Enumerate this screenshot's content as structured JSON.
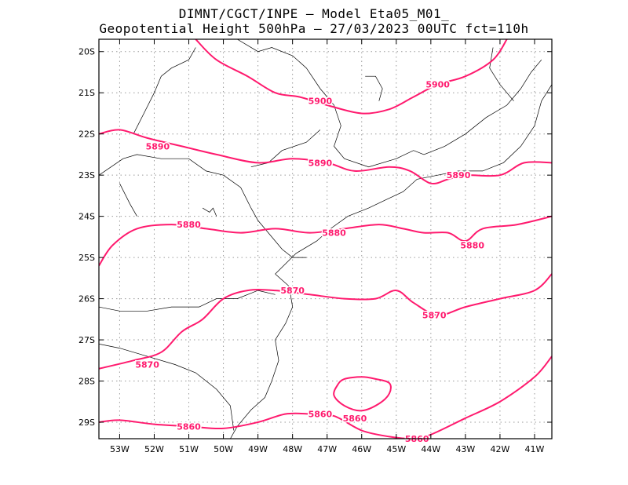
{
  "header": {
    "line1": "DIMNT/CGCT/INPE –  Model Eta05_M01_",
    "line2": "Geopotential Height 500hPa –  27/03/2023 00UTC fct=110h"
  },
  "map": {
    "lon_range": [
      -53.6,
      -40.5
    ],
    "lat_range": [
      -29.4,
      -19.7
    ],
    "lon_ticks": [
      {
        "value": -53,
        "label": "53W"
      },
      {
        "value": -52,
        "label": "52W"
      },
      {
        "value": -51,
        "label": "51W"
      },
      {
        "value": -50,
        "label": "50W"
      },
      {
        "value": -49,
        "label": "49W"
      },
      {
        "value": -48,
        "label": "48W"
      },
      {
        "value": -47,
        "label": "47W"
      },
      {
        "value": -46,
        "label": "46W"
      },
      {
        "value": -45,
        "label": "45W"
      },
      {
        "value": -44,
        "label": "44W"
      },
      {
        "value": -43,
        "label": "43W"
      },
      {
        "value": -42,
        "label": "42W"
      },
      {
        "value": -41,
        "label": "41W"
      }
    ],
    "lat_ticks": [
      {
        "value": -20,
        "label": "20S"
      },
      {
        "value": -21,
        "label": "21S"
      },
      {
        "value": -22,
        "label": "22S"
      },
      {
        "value": -23,
        "label": "23S"
      },
      {
        "value": -24,
        "label": "24S"
      },
      {
        "value": -25,
        "label": "25S"
      },
      {
        "value": -26,
        "label": "26S"
      },
      {
        "value": -27,
        "label": "27S"
      },
      {
        "value": -28,
        "label": "28S"
      },
      {
        "value": -29,
        "label": "29S"
      }
    ],
    "grid": true,
    "contour_color": "#ff1a6e",
    "contours": [
      {
        "level": "5900",
        "label_at": [
          [
            -47.2,
            -21.2
          ],
          [
            -43.8,
            -20.8
          ]
        ],
        "points": [
          [
            -50.8,
            -19.7
          ],
          [
            -50.2,
            -20.2
          ],
          [
            -49.3,
            -20.6
          ],
          [
            -48.5,
            -21.0
          ],
          [
            -47.8,
            -21.1
          ],
          [
            -47.0,
            -21.3
          ],
          [
            -46.0,
            -21.5
          ],
          [
            -45.2,
            -21.4
          ],
          [
            -44.5,
            -21.1
          ],
          [
            -43.8,
            -20.8
          ],
          [
            -43.0,
            -20.6
          ],
          [
            -42.2,
            -20.2
          ],
          [
            -41.8,
            -19.7
          ]
        ]
      },
      {
        "level": "5890",
        "label_at": [
          [
            -51.9,
            -22.3
          ],
          [
            -47.2,
            -22.7
          ],
          [
            -43.2,
            -23.0
          ]
        ],
        "points": [
          [
            -53.6,
            -22.0
          ],
          [
            -53.0,
            -21.9
          ],
          [
            -52.2,
            -22.1
          ],
          [
            -51.2,
            -22.3
          ],
          [
            -50.2,
            -22.5
          ],
          [
            -49.0,
            -22.7
          ],
          [
            -48.0,
            -22.6
          ],
          [
            -47.0,
            -22.7
          ],
          [
            -46.2,
            -22.9
          ],
          [
            -45.2,
            -22.8
          ],
          [
            -44.6,
            -22.9
          ],
          [
            -44.0,
            -23.2
          ],
          [
            -43.5,
            -23.1
          ],
          [
            -43.0,
            -23.0
          ],
          [
            -42.0,
            -23.0
          ],
          [
            -41.3,
            -22.7
          ],
          [
            -40.5,
            -22.7
          ]
        ]
      },
      {
        "level": "5880",
        "label_at": [
          [
            -51.0,
            -24.2
          ],
          [
            -46.8,
            -24.4
          ],
          [
            -42.8,
            -24.7
          ]
        ],
        "points": [
          [
            -53.6,
            -25.2
          ],
          [
            -53.2,
            -24.7
          ],
          [
            -52.5,
            -24.3
          ],
          [
            -51.5,
            -24.2
          ],
          [
            -50.5,
            -24.3
          ],
          [
            -49.5,
            -24.4
          ],
          [
            -48.5,
            -24.3
          ],
          [
            -47.5,
            -24.4
          ],
          [
            -46.5,
            -24.3
          ],
          [
            -45.5,
            -24.2
          ],
          [
            -44.8,
            -24.3
          ],
          [
            -44.2,
            -24.4
          ],
          [
            -43.5,
            -24.4
          ],
          [
            -43.0,
            -24.6
          ],
          [
            -42.5,
            -24.3
          ],
          [
            -41.5,
            -24.2
          ],
          [
            -40.5,
            -24.0
          ]
        ]
      },
      {
        "level": "5870",
        "label_at": [
          [
            -48.0,
            -25.8
          ],
          [
            -43.9,
            -26.4
          ],
          [
            -52.2,
            -27.6
          ]
        ],
        "points": [
          [
            -53.6,
            -27.7
          ],
          [
            -52.6,
            -27.5
          ],
          [
            -51.8,
            -27.3
          ],
          [
            -51.2,
            -26.8
          ],
          [
            -50.6,
            -26.5
          ],
          [
            -50.0,
            -26.0
          ],
          [
            -49.3,
            -25.8
          ],
          [
            -48.5,
            -25.8
          ],
          [
            -47.5,
            -25.9
          ],
          [
            -46.5,
            -26.0
          ],
          [
            -45.6,
            -26.0
          ],
          [
            -45.0,
            -25.8
          ],
          [
            -44.5,
            -26.1
          ],
          [
            -43.8,
            -26.4
          ],
          [
            -43.0,
            -26.2
          ],
          [
            -42.0,
            -26.0
          ],
          [
            -41.0,
            -25.8
          ],
          [
            -40.5,
            -25.4
          ]
        ]
      },
      {
        "level": "5860",
        "label_at": [
          [
            -51.0,
            -29.1
          ],
          [
            -47.2,
            -28.8
          ],
          [
            -46.2,
            -28.9
          ],
          [
            -44.4,
            -29.4
          ]
        ],
        "points": [
          [
            -53.6,
            -29.0
          ],
          [
            -53.0,
            -28.95
          ],
          [
            -52.0,
            -29.05
          ],
          [
            -51.0,
            -29.1
          ],
          [
            -50.0,
            -29.15
          ],
          [
            -49.0,
            -29.0
          ],
          [
            -48.2,
            -28.8
          ],
          [
            -47.5,
            -28.8
          ],
          [
            -46.8,
            -28.85
          ],
          [
            -46.0,
            -29.2
          ],
          [
            -45.2,
            -29.35
          ],
          [
            -44.5,
            -29.4
          ],
          [
            -44.0,
            -29.3
          ],
          [
            -43.0,
            -28.9
          ],
          [
            -42.0,
            -28.5
          ],
          [
            -41.0,
            -27.9
          ],
          [
            -40.5,
            -27.4
          ]
        ]
      },
      {
        "level": "",
        "closed": true,
        "points": [
          [
            -46.7,
            -28.1
          ],
          [
            -46.5,
            -27.95
          ],
          [
            -46.0,
            -27.9
          ],
          [
            -45.6,
            -27.95
          ],
          [
            -45.2,
            -28.05
          ],
          [
            -45.2,
            -28.3
          ],
          [
            -45.5,
            -28.55
          ],
          [
            -46.0,
            -28.72
          ],
          [
            -46.5,
            -28.6
          ],
          [
            -46.8,
            -28.35
          ]
        ]
      }
    ],
    "borders": [
      [
        [
          -53.6,
          -23.0
        ],
        [
          -52.9,
          -22.6
        ],
        [
          -52.5,
          -22.5
        ],
        [
          -51.8,
          -22.6
        ],
        [
          -51.0,
          -22.6
        ],
        [
          -50.5,
          -22.9
        ],
        [
          -50.0,
          -23.0
        ],
        [
          -49.5,
          -23.3
        ],
        [
          -49.2,
          -23.8
        ],
        [
          -49.0,
          -24.1
        ],
        [
          -48.6,
          -24.5
        ],
        [
          -48.3,
          -24.8
        ],
        [
          -48.0,
          -25.0
        ],
        [
          -47.6,
          -25.0
        ]
      ],
      [
        [
          -53.6,
          -26.2
        ],
        [
          -53.0,
          -26.3
        ],
        [
          -52.2,
          -26.3
        ],
        [
          -51.5,
          -26.2
        ],
        [
          -50.7,
          -26.2
        ],
        [
          -50.2,
          -26.0
        ],
        [
          -49.6,
          -26.0
        ],
        [
          -49.0,
          -25.8
        ],
        [
          -48.5,
          -25.9
        ]
      ],
      [
        [
          -53.6,
          -27.1
        ],
        [
          -53.0,
          -27.2
        ],
        [
          -52.2,
          -27.4
        ],
        [
          -51.4,
          -27.6
        ],
        [
          -50.8,
          -27.8
        ],
        [
          -50.2,
          -28.2
        ],
        [
          -49.8,
          -28.6
        ],
        [
          -49.7,
          -29.2
        ]
      ],
      [
        [
          -53.0,
          -23.2
        ],
        [
          -52.7,
          -23.7
        ],
        [
          -52.5,
          -24.0
        ]
      ],
      [
        [
          -50.8,
          -19.9
        ],
        [
          -51.0,
          -20.2
        ],
        [
          -51.5,
          -20.4
        ],
        [
          -51.8,
          -20.6
        ],
        [
          -52.0,
          -21.0
        ],
        [
          -52.3,
          -21.5
        ],
        [
          -52.6,
          -22.0
        ]
      ],
      [
        [
          -49.6,
          -19.7
        ],
        [
          -49.0,
          -20.0
        ],
        [
          -48.6,
          -19.9
        ],
        [
          -48.0,
          -20.1
        ],
        [
          -47.6,
          -20.4
        ],
        [
          -47.2,
          -20.9
        ],
        [
          -46.8,
          -21.3
        ],
        [
          -46.6,
          -21.8
        ],
        [
          -46.8,
          -22.3
        ],
        [
          -46.5,
          -22.6
        ],
        [
          -45.8,
          -22.8
        ],
        [
          -45.0,
          -22.6
        ],
        [
          -44.5,
          -22.4
        ],
        [
          -44.2,
          -22.5
        ]
      ],
      [
        [
          -44.2,
          -22.5
        ],
        [
          -43.6,
          -22.3
        ],
        [
          -43.0,
          -22.0
        ],
        [
          -42.4,
          -21.6
        ],
        [
          -41.8,
          -21.3
        ],
        [
          -41.4,
          -20.9
        ],
        [
          -41.1,
          -20.5
        ],
        [
          -40.8,
          -20.2
        ]
      ],
      [
        [
          -41.6,
          -21.2
        ],
        [
          -42.0,
          -20.8
        ],
        [
          -42.3,
          -20.4
        ],
        [
          -42.2,
          -19.9
        ]
      ],
      [
        [
          -48.5,
          -25.4
        ],
        [
          -48.1,
          -25.7
        ],
        [
          -48.0,
          -26.2
        ],
        [
          -48.2,
          -26.6
        ],
        [
          -48.5,
          -27.0
        ],
        [
          -48.4,
          -27.5
        ],
        [
          -48.6,
          -28.0
        ],
        [
          -48.8,
          -28.4
        ],
        [
          -49.2,
          -28.7
        ],
        [
          -49.6,
          -29.1
        ],
        [
          -49.8,
          -29.4
        ]
      ],
      [
        [
          -48.5,
          -25.4
        ],
        [
          -47.9,
          -24.9
        ],
        [
          -47.3,
          -24.6
        ],
        [
          -46.9,
          -24.3
        ],
        [
          -46.4,
          -24.0
        ],
        [
          -45.8,
          -23.8
        ],
        [
          -45.3,
          -23.6
        ],
        [
          -44.8,
          -23.4
        ],
        [
          -44.4,
          -23.1
        ],
        [
          -43.8,
          -23.0
        ],
        [
          -43.2,
          -22.9
        ],
        [
          -42.5,
          -22.9
        ],
        [
          -41.9,
          -22.7
        ],
        [
          -41.4,
          -22.3
        ],
        [
          -41.0,
          -21.8
        ],
        [
          -40.8,
          -21.2
        ],
        [
          -40.5,
          -20.8
        ]
      ],
      [
        [
          -47.2,
          -21.9
        ],
        [
          -47.6,
          -22.2
        ],
        [
          -48.3,
          -22.4
        ],
        [
          -48.7,
          -22.7
        ],
        [
          -49.2,
          -22.8
        ]
      ],
      [
        [
          -45.9,
          -20.6
        ],
        [
          -45.6,
          -20.6
        ],
        [
          -45.4,
          -20.9
        ],
        [
          -45.5,
          -21.2
        ]
      ],
      [
        [
          -50.6,
          -23.8
        ],
        [
          -50.4,
          -23.9
        ],
        [
          -50.3,
          -23.8
        ],
        [
          -50.2,
          -24.0
        ]
      ]
    ]
  }
}
